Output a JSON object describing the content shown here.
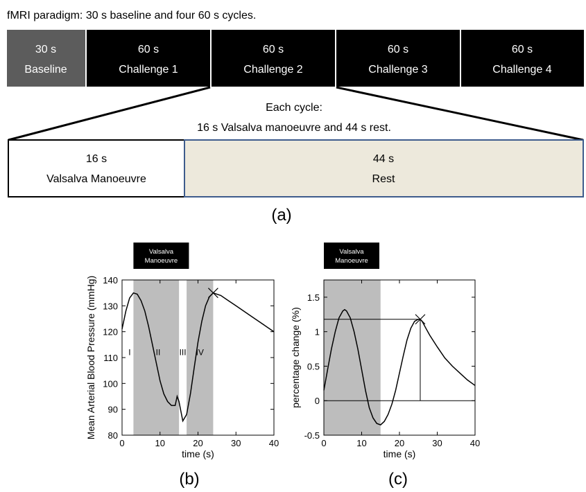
{
  "header": {
    "text": "fMRI paradigm: 30 s baseline and four 60 s cycles."
  },
  "timeline": [
    {
      "duration": "30 s",
      "label": "Baseline",
      "seconds": 30,
      "color": "#5c5c5c"
    },
    {
      "duration": "60 s",
      "label": "Challenge 1",
      "seconds": 60,
      "color": "#000000"
    },
    {
      "duration": "60 s",
      "label": "Challenge 2",
      "seconds": 60,
      "color": "#000000"
    },
    {
      "duration": "60 s",
      "label": "Challenge 3",
      "seconds": 60,
      "color": "#000000"
    },
    {
      "duration": "60 s",
      "label": "Challenge 4",
      "seconds": 60,
      "color": "#000000"
    }
  ],
  "cycle_caption": {
    "line1": "Each cycle:",
    "line2": "16 s Valsalva manoeuvre and 44 s rest."
  },
  "cycle": [
    {
      "duration": "16 s",
      "label": "Valsalva Manoeuvre",
      "seconds": 16,
      "color": "#ffffff"
    },
    {
      "duration": "44 s",
      "label": "Rest",
      "seconds": 44,
      "color": "#ede9dc"
    }
  ],
  "panel_labels": {
    "a": "(a)",
    "b": "(b)",
    "c": "(c)"
  },
  "chart_data": [
    {
      "type": "line",
      "valsalva_label": {
        "line1": "Valsalva",
        "line2": "Manoeuvre"
      },
      "xlabel": "time (s)",
      "ylabel": "Mean Arterial Blood Pressure (mmHg)",
      "xlim": [
        0,
        40
      ],
      "ylim": [
        80,
        140
      ],
      "xticks": [
        0,
        10,
        20,
        30,
        40
      ],
      "yticks": [
        80,
        90,
        100,
        110,
        120,
        130,
        140
      ],
      "shaded_regions": [
        [
          3,
          15
        ],
        [
          17,
          24
        ]
      ],
      "phase_labels": [
        {
          "text": "I",
          "x": 2,
          "y": 111
        },
        {
          "text": "II",
          "x": 9.5,
          "y": 111
        },
        {
          "text": "III",
          "x": 16,
          "y": 111
        },
        {
          "text": "IV",
          "x": 20.5,
          "y": 111
        }
      ],
      "marker": {
        "x": 24,
        "y": 135
      },
      "series": [
        {
          "x": [
            0,
            1,
            2,
            3,
            4,
            5,
            6,
            7,
            8,
            9,
            10,
            11,
            12,
            13,
            14,
            14.5,
            15,
            16,
            17,
            18,
            19,
            20,
            21,
            22,
            23,
            24,
            26,
            28,
            30,
            32,
            34,
            36,
            38,
            40
          ],
          "y": [
            121,
            128,
            133,
            135,
            134.5,
            132,
            128,
            122,
            115,
            108,
            101,
            96,
            93,
            91.5,
            91.5,
            95,
            93,
            85.5,
            88,
            96,
            106,
            116,
            124,
            130,
            133.5,
            135,
            134,
            132,
            130,
            128,
            126,
            124,
            122,
            120
          ]
        }
      ]
    },
    {
      "type": "line",
      "valsalva_label": {
        "line1": "Valsalva",
        "line2": "Manoeuvre"
      },
      "xlabel": "time (s)",
      "ylabel": "percentage change (%)",
      "xlim": [
        0,
        40
      ],
      "ylim": [
        -0.5,
        1.75
      ],
      "xticks": [
        0,
        10,
        20,
        30,
        40
      ],
      "yticks": [
        -0.5,
        0,
        0.5,
        1,
        1.5
      ],
      "yticklabels": [
        "-0.5",
        "0",
        "0.5",
        "1",
        "1.5"
      ],
      "shaded_regions": [
        [
          0,
          15
        ]
      ],
      "hlines": [
        0
      ],
      "marker": {
        "x": 25.5,
        "y": 1.18
      },
      "series": [
        {
          "x": [
            0,
            1,
            2,
            3,
            4,
            5,
            5.5,
            6,
            7,
            8,
            9,
            10,
            11,
            12,
            13,
            14,
            15,
            16,
            17,
            18,
            19,
            20,
            21,
            22,
            23,
            24,
            25,
            25.5,
            26,
            27,
            28,
            30,
            32,
            34,
            36,
            38,
            40
          ],
          "y": [
            0.15,
            0.45,
            0.75,
            1.0,
            1.2,
            1.3,
            1.32,
            1.3,
            1.2,
            1.0,
            0.75,
            0.45,
            0.15,
            -0.1,
            -0.25,
            -0.33,
            -0.35,
            -0.3,
            -0.2,
            -0.05,
            0.15,
            0.4,
            0.65,
            0.88,
            1.05,
            1.15,
            1.18,
            1.18,
            1.15,
            1.05,
            0.95,
            0.78,
            0.62,
            0.5,
            0.4,
            0.3,
            0.22
          ]
        }
      ]
    }
  ]
}
